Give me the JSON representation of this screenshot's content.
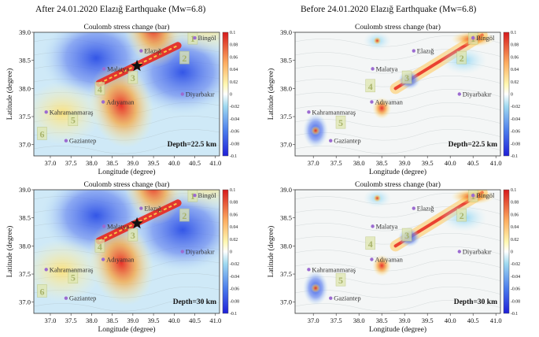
{
  "figure": {
    "left_title": "After 24.01.2020 Elazığ Earthquake (Mw=6.8)",
    "right_title": "Before 24.01.2020 Elazığ Earthquake (Mw=6.8)"
  },
  "panel_labels": {
    "title": "Coulomb stress change (bar)",
    "xlabel": "Longitude (degree)",
    "ylabel": "Latitude (degree)"
  },
  "cities": [
    {
      "name": "Bingöl",
      "lon": 40.5,
      "lat": 38.9
    },
    {
      "name": "Elazığ",
      "lon": 39.2,
      "lat": 38.67
    },
    {
      "name": "Malatya",
      "lon": 38.3,
      "lat": 38.35
    },
    {
      "name": "Adıyaman",
      "lon": 38.28,
      "lat": 37.76
    },
    {
      "name": "Diyarbakır",
      "lon": 40.2,
      "lat": 37.9
    },
    {
      "name": "Kahramanmaraş",
      "lon": 36.9,
      "lat": 37.58
    },
    {
      "name": "Gaziantep",
      "lon": 37.38,
      "lat": 37.07
    }
  ],
  "segments_after": [
    "1",
    "2",
    "3",
    "4",
    "5",
    "6"
  ],
  "segments_before": [
    "1",
    "2",
    "3",
    "4",
    "5"
  ],
  "chart_data": [
    {
      "type": "heatmap",
      "id": "after-22.5",
      "title": "Coulomb stress change (bar)",
      "xlabel": "Longitude (degree)",
      "ylabel": "Latitude (degree)",
      "xlim": [
        36.6,
        41.1
      ],
      "ylim": [
        36.8,
        39.0
      ],
      "xticks": [
        "37.0",
        "37.5",
        "38.0",
        "38.5",
        "39.0",
        "39.5",
        "40.0",
        "40.5",
        "41.0"
      ],
      "yticks": [
        "37.0",
        "37.5",
        "38.0",
        "38.5",
        "39.0"
      ],
      "colorbar_ticks": [
        "0.1",
        "0.08",
        "0.06",
        "0.04",
        "0.02",
        "0",
        "-0.02",
        "-0.04",
        "-0.06",
        "-0.08",
        "-0.1"
      ],
      "depth_label": "Depth=22.5 km",
      "epicenter": {
        "lon": 39.1,
        "lat": 38.4
      }
    },
    {
      "type": "heatmap",
      "id": "before-22.5",
      "title": "Coulomb stress change (bar)",
      "xlabel": "Longitude (degree)",
      "ylabel": "Latitude (degree)",
      "xlim": [
        36.6,
        41.1
      ],
      "ylim": [
        36.8,
        39.0
      ],
      "xticks": [
        "37.0",
        "37.5",
        "38.0",
        "38.5",
        "39.0",
        "39.5",
        "40.0",
        "40.5",
        "41.0"
      ],
      "yticks": [
        "37.0",
        "37.5",
        "38.0",
        "38.5",
        "39.0"
      ],
      "colorbar_ticks": [
        "0.1",
        "0.08",
        "0.06",
        "0.04",
        "0.02",
        "0",
        "-0.02",
        "-0.04",
        "-0.06",
        "-0.08",
        "-0.1"
      ],
      "depth_label": "Depth=22.5 km"
    },
    {
      "type": "heatmap",
      "id": "after-30",
      "title": "Coulomb stress change (bar)",
      "xlabel": "Longitude (degree)",
      "ylabel": "Latitude (degree)",
      "xlim": [
        36.6,
        41.1
      ],
      "ylim": [
        36.8,
        39.0
      ],
      "xticks": [
        "37.0",
        "37.5",
        "38.0",
        "38.5",
        "39.0",
        "39.5",
        "40.0",
        "40.5",
        "41.0"
      ],
      "yticks": [
        "37.0",
        "37.5",
        "38.0",
        "38.5",
        "39.0"
      ],
      "colorbar_ticks": [
        "0.1",
        "0.08",
        "0.06",
        "0.04",
        "0.02",
        "0",
        "-0.02",
        "-0.04",
        "-0.06",
        "-0.08",
        "-0.1"
      ],
      "depth_label": "Depth=30 km",
      "epicenter": {
        "lon": 39.1,
        "lat": 38.4
      }
    },
    {
      "type": "heatmap",
      "id": "before-30",
      "title": "Coulomb stress change (bar)",
      "xlabel": "Longitude (degree)",
      "ylabel": "Latitude (degree)",
      "xlim": [
        36.6,
        41.1
      ],
      "ylim": [
        36.8,
        39.0
      ],
      "xticks": [
        "37.0",
        "37.5",
        "38.0",
        "38.5",
        "39.0",
        "39.5",
        "40.0",
        "40.5",
        "41.0"
      ],
      "yticks": [
        "37.0",
        "37.5",
        "38.0",
        "38.5",
        "39.0"
      ],
      "colorbar_ticks": [
        "0.1",
        "0.08",
        "0.06",
        "0.04",
        "0.02",
        "0",
        "-0.02",
        "-0.04",
        "-0.06",
        "-0.08",
        "-0.1"
      ],
      "depth_label": "Depth=30 km"
    }
  ]
}
